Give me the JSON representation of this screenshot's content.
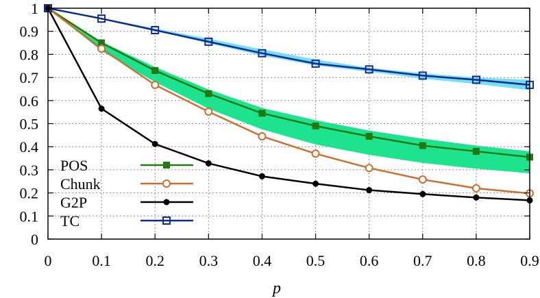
{
  "chart_data": {
    "type": "line",
    "title": "",
    "xlabel": "p",
    "ylabel": "",
    "xlim": [
      0,
      0.9
    ],
    "ylim": [
      0,
      1
    ],
    "xticks": [
      "0",
      "0.1",
      "0.2",
      "0.3",
      "0.4",
      "0.5",
      "0.6",
      "0.7",
      "0.8",
      "0.9"
    ],
    "yticks": [
      "0",
      "0.1",
      "0.2",
      "0.3",
      "0.4",
      "0.5",
      "0.6",
      "0.7",
      "0.8",
      "0.9",
      "1"
    ],
    "grid": true,
    "legend_position": "bottom-left",
    "x": [
      0,
      0.1,
      0.2,
      0.3,
      0.4,
      0.5,
      0.6,
      0.7,
      0.8,
      0.9
    ],
    "series": [
      {
        "name": "POS",
        "color": "#217a11",
        "marker": "filled-square",
        "values": [
          1.0,
          0.85,
          0.73,
          0.63,
          0.545,
          0.49,
          0.445,
          0.405,
          0.38,
          0.355
        ]
      },
      {
        "name": "Chunk",
        "color": "#cc6e2e",
        "marker": "open-circle",
        "values": [
          1.0,
          0.825,
          0.668,
          0.552,
          0.445,
          0.37,
          0.308,
          0.258,
          0.22,
          0.198
        ]
      },
      {
        "name": "G2P",
        "color": "#000000",
        "marker": "filled-circle",
        "values": [
          1.0,
          0.565,
          0.412,
          0.328,
          0.272,
          0.24,
          0.212,
          0.195,
          0.18,
          0.168
        ]
      },
      {
        "name": "TC",
        "color": "#0c2a8f",
        "marker": "open-square",
        "values": [
          1.0,
          0.955,
          0.905,
          0.855,
          0.805,
          0.76,
          0.735,
          0.708,
          0.69,
          0.668
        ]
      }
    ],
    "bands": [
      {
        "name": "POS-band",
        "color": "#1de38e",
        "upper": [
          1.0,
          0.855,
          0.745,
          0.648,
          0.568,
          0.515,
          0.47,
          0.435,
          0.405,
          0.38
        ],
        "lower": [
          1.0,
          0.815,
          0.68,
          0.565,
          0.475,
          0.41,
          0.365,
          0.33,
          0.305,
          0.285
        ]
      },
      {
        "name": "TC-band",
        "color": "#74def5",
        "upper": [
          1.0,
          0.958,
          0.912,
          0.868,
          0.822,
          0.778,
          0.742,
          0.718,
          0.7,
          0.69
        ],
        "lower": [
          1.0,
          0.952,
          0.902,
          0.848,
          0.795,
          0.752,
          0.725,
          0.695,
          0.672,
          0.645
        ]
      }
    ]
  }
}
